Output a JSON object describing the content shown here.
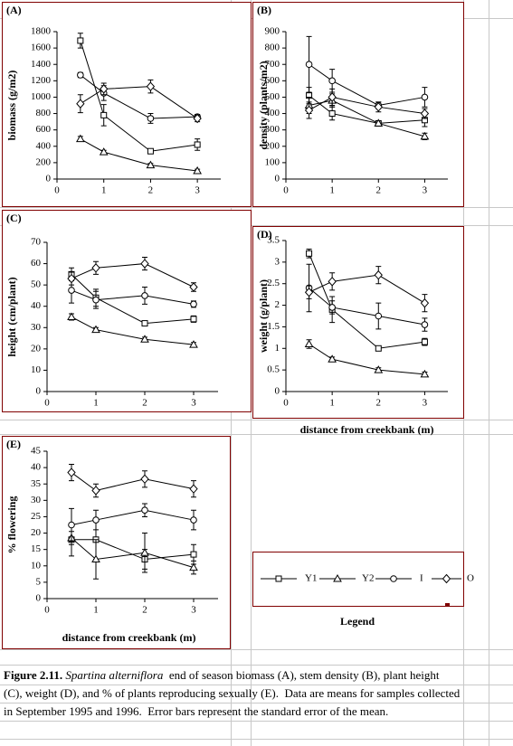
{
  "chart_data": [
    {
      "type": "line",
      "title": "(A)",
      "y_label": "biomass (g/m2)",
      "x": [
        0.5,
        1,
        2,
        3
      ],
      "xlim": [
        0,
        3.5
      ],
      "xticks": [
        0,
        1,
        2,
        3
      ],
      "ylim": [
        0,
        1800
      ],
      "yticks": [
        0,
        200,
        400,
        600,
        800,
        1000,
        1200,
        1400,
        1600,
        1800
      ],
      "series": [
        {
          "values": [
            1690,
            780,
            340,
            420
          ],
          "errors": [
            90,
            130,
            20,
            70
          ]
        },
        {
          "values": [
            490,
            330,
            170,
            100
          ],
          "errors": [
            30,
            20,
            20,
            20
          ]
        },
        {
          "values": [
            1270,
            1050,
            740,
            760
          ],
          "errors": [
            30,
            90,
            60,
            30
          ]
        },
        {
          "values": [
            920,
            1100,
            1130,
            740
          ],
          "errors": [
            110,
            70,
            80,
            40
          ]
        }
      ]
    },
    {
      "type": "line",
      "title": "(B)",
      "y_label": "density (plants/m2)",
      "x": [
        0.5,
        1,
        2,
        3
      ],
      "xlim": [
        0,
        3.5
      ],
      "xticks": [
        0,
        1,
        2,
        3
      ],
      "ylim": [
        0,
        900
      ],
      "yticks": [
        0,
        100,
        200,
        300,
        400,
        500,
        600,
        700,
        800,
        900
      ],
      "series": [
        {
          "values": [
            510,
            400,
            340,
            360
          ],
          "errors": [
            50,
            40,
            15,
            40
          ]
        },
        {
          "values": [
            450,
            480,
            340,
            260
          ],
          "errors": [
            50,
            40,
            15,
            20
          ]
        },
        {
          "values": [
            700,
            600,
            450,
            500
          ],
          "errors": [
            170,
            70,
            20,
            60
          ]
        },
        {
          "values": [
            420,
            500,
            440,
            400
          ],
          "errors": [
            50,
            50,
            30,
            30
          ]
        }
      ]
    },
    {
      "type": "line",
      "title": "(C)",
      "y_label": "height  (cm/plant)",
      "x": [
        0.5,
        1,
        2,
        3
      ],
      "xlim": [
        0,
        3.5
      ],
      "xticks": [
        0,
        1,
        2,
        3
      ],
      "ylim": [
        0,
        70
      ],
      "yticks": [
        0,
        10,
        20,
        30,
        40,
        50,
        60,
        70
      ],
      "series": [
        {
          "values": [
            55,
            44,
            32,
            34
          ],
          "errors": [
            3,
            4,
            1,
            1.5
          ]
        },
        {
          "values": [
            35,
            29,
            24.5,
            22
          ],
          "errors": [
            1.5,
            1,
            1,
            1
          ]
        },
        {
          "values": [
            47.5,
            43,
            45,
            41
          ],
          "errors": [
            6,
            4,
            4,
            1.5
          ]
        },
        {
          "values": [
            53,
            58,
            60,
            49
          ],
          "errors": [
            3,
            3,
            3,
            2
          ]
        }
      ]
    },
    {
      "type": "line",
      "title": "(D)",
      "y_label": "weight (g/plant)",
      "x_label": "distance from creekbank (m)",
      "x": [
        0.5,
        1,
        2,
        3
      ],
      "xlim": [
        0,
        3.5
      ],
      "xticks": [
        0,
        1,
        2,
        3
      ],
      "ylim": [
        0,
        3.5
      ],
      "yticks": [
        0,
        0.5,
        1,
        1.5,
        2,
        2.5,
        3,
        3.5
      ],
      "series": [
        {
          "values": [
            3.2,
            1.9,
            1.0,
            1.15
          ],
          "errors": [
            0.1,
            0.3,
            0.05,
            0.08
          ]
        },
        {
          "values": [
            1.1,
            0.75,
            0.5,
            0.4
          ],
          "errors": [
            0.1,
            0.05,
            0.05,
            0.05
          ]
        },
        {
          "values": [
            2.4,
            1.95,
            1.75,
            1.55
          ],
          "errors": [
            0.55,
            0.15,
            0.3,
            0.15
          ]
        },
        {
          "values": [
            2.3,
            2.55,
            2.7,
            2.05
          ],
          "errors": [
            0.15,
            0.2,
            0.2,
            0.2
          ]
        }
      ]
    },
    {
      "type": "line",
      "title": "(E)",
      "y_label": "% flowering",
      "x_label": "distance from creekbank (m)",
      "x": [
        0.5,
        1,
        2,
        3
      ],
      "xlim": [
        0,
        3.5
      ],
      "xticks": [
        0,
        1,
        2,
        3
      ],
      "ylim": [
        0,
        45
      ],
      "yticks": [
        0,
        5,
        10,
        15,
        20,
        25,
        30,
        35,
        40,
        45
      ],
      "series": [
        {
          "values": [
            18,
            18,
            12,
            13.5
          ],
          "errors": [
            5,
            6,
            3,
            3
          ]
        },
        {
          "values": [
            18.5,
            12,
            14,
            9.5
          ],
          "errors": [
            2,
            6,
            6,
            2
          ]
        },
        {
          "values": [
            22.5,
            24,
            27,
            24
          ],
          "errors": [
            5,
            3,
            2,
            3
          ]
        },
        {
          "values": [
            38.5,
            33,
            36.5,
            33.5
          ],
          "errors": [
            2.5,
            2,
            2.5,
            2.5
          ]
        }
      ]
    }
  ],
  "legend": {
    "title": "Legend",
    "series": [
      {
        "name": "Y1",
        "marker": "square"
      },
      {
        "name": "Y2",
        "marker": "triangle"
      },
      {
        "name": "I",
        "marker": "circle"
      },
      {
        "name": "O",
        "marker": "diamond"
      }
    ]
  },
  "caption": {
    "label": "Figure 2.11.",
    "species": "Spartina alterniflora",
    "text": "  end of season biomass (A), stem density (B), plant height (C), weight (D), and % of plants reproducing sexually (E).  Data are means for samples collected in September 1995 and 1996.  Error bars represent the standard error of the mean."
  }
}
